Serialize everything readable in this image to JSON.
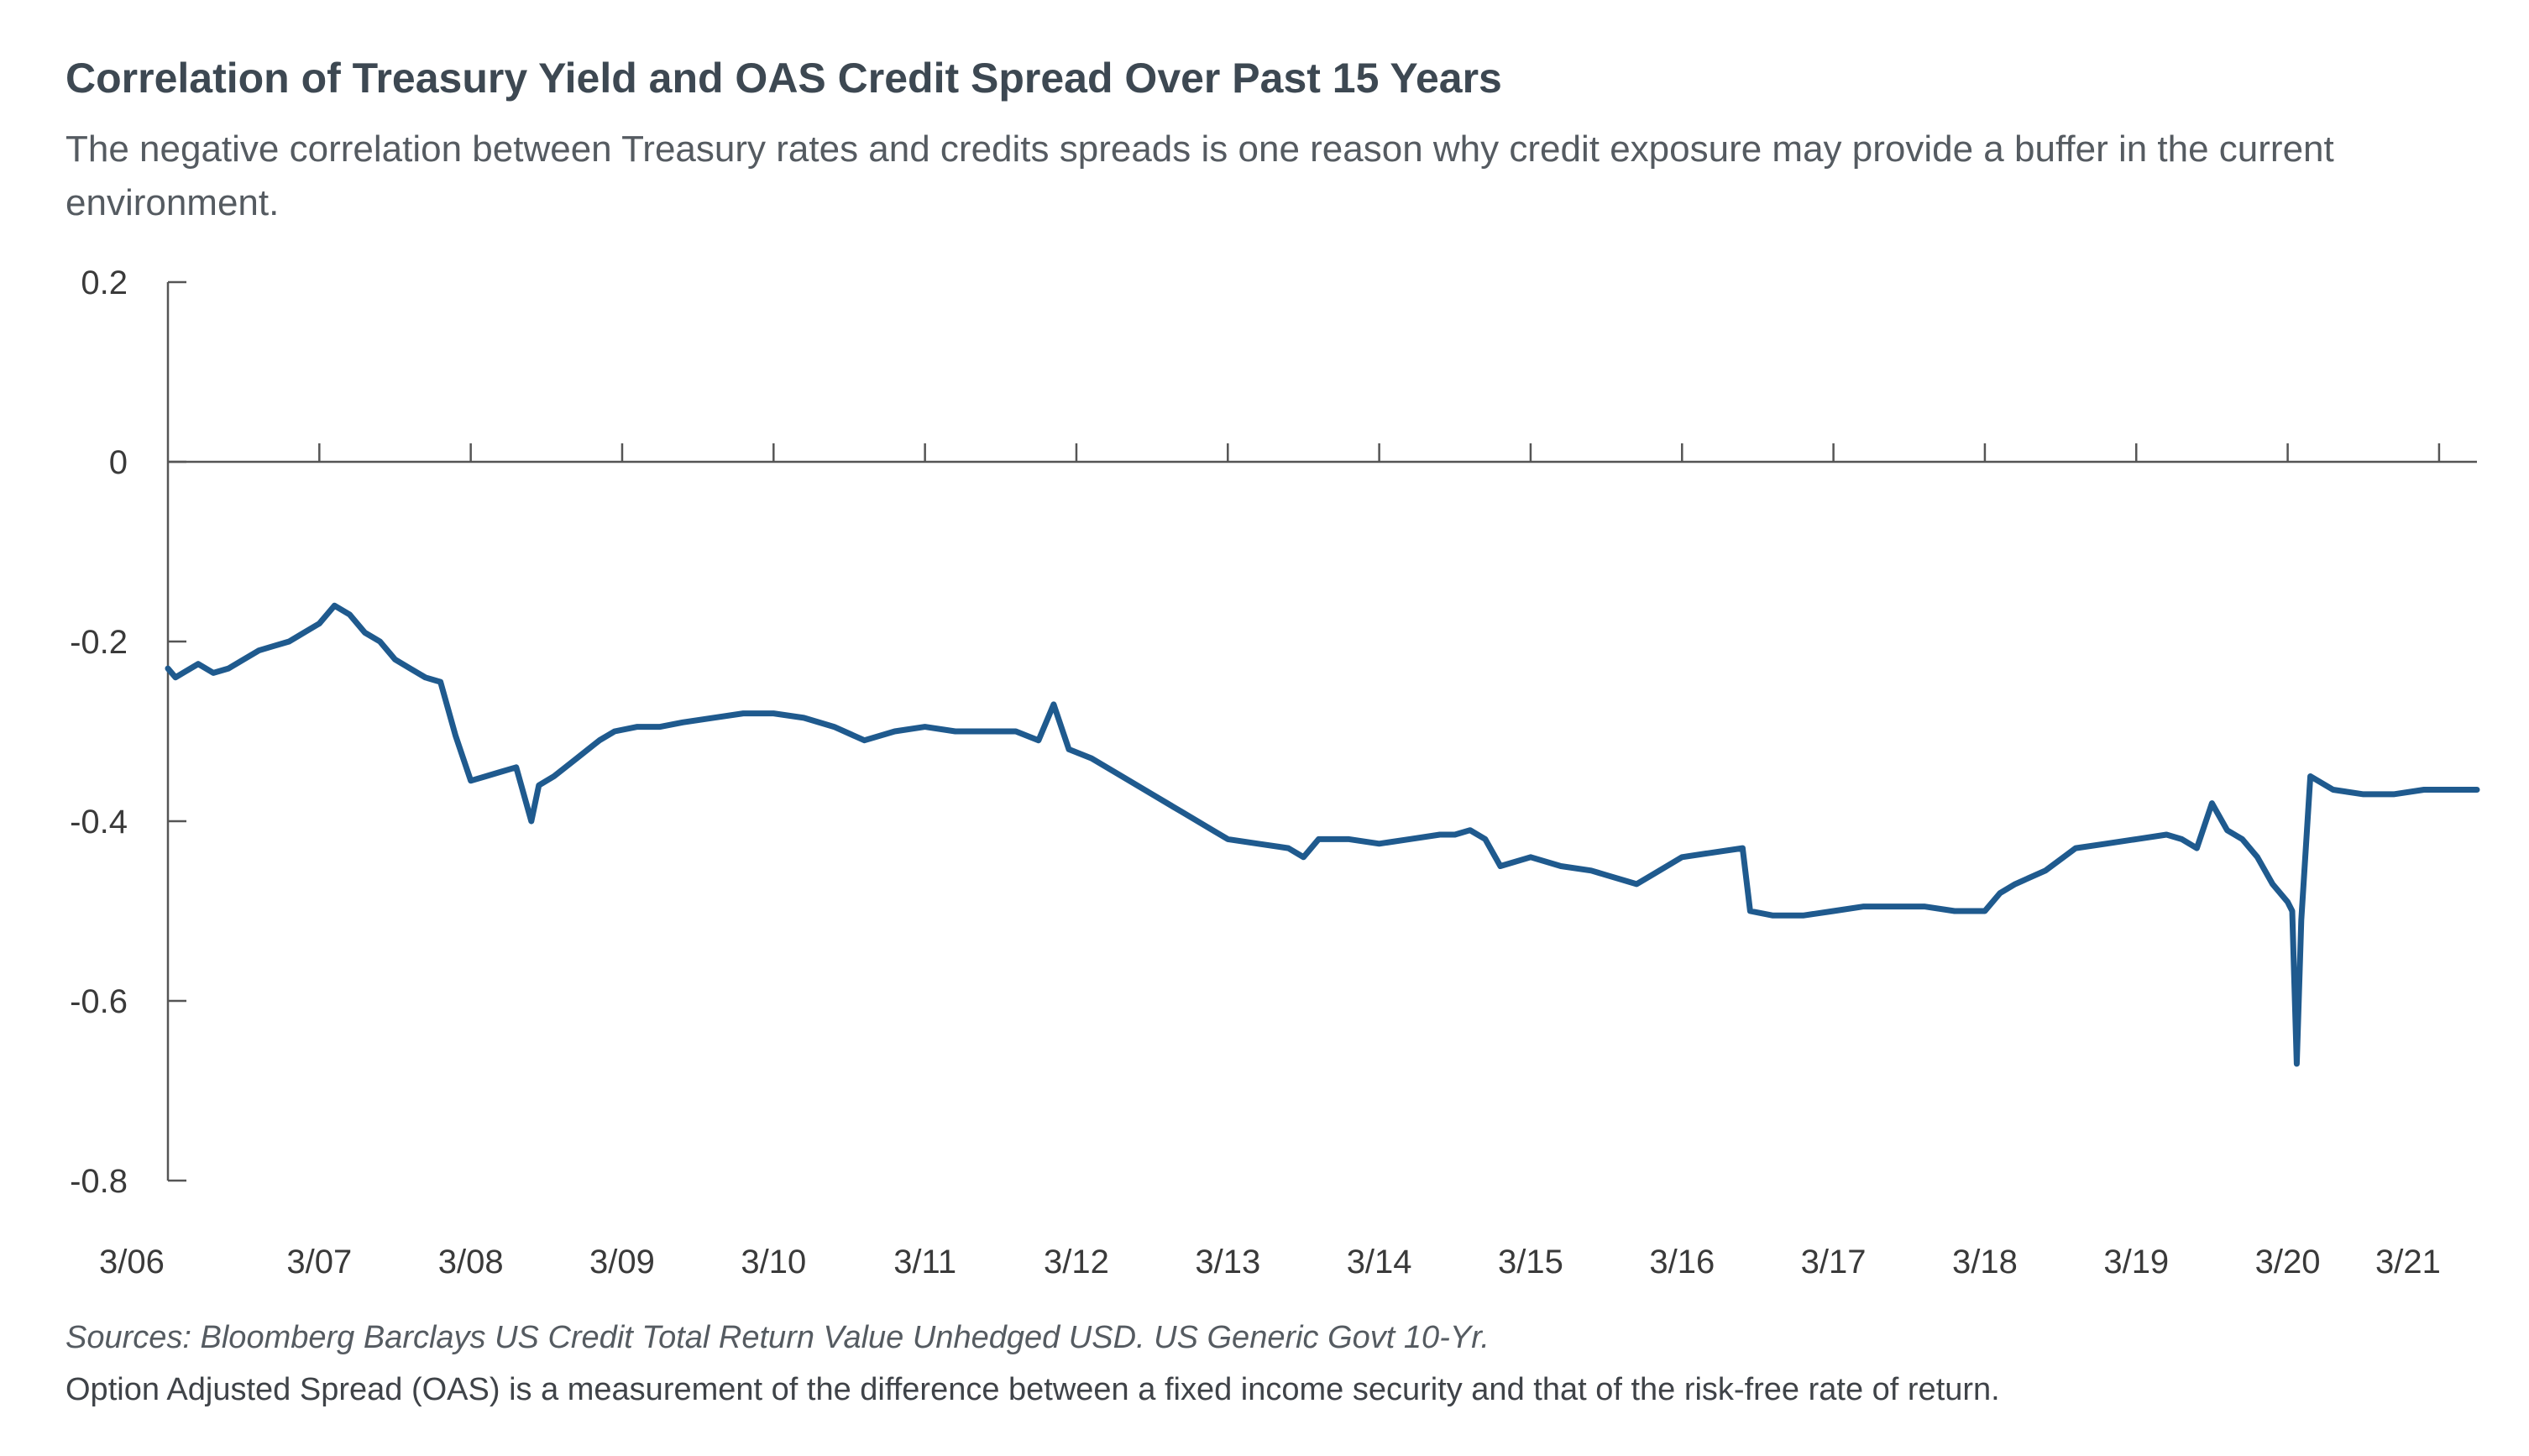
{
  "title": "Correlation of Treasury Yield and OAS Credit Spread Over Past 15 Years",
  "subtitle": "The negative correlation between Treasury rates and credits spreads is one reason why credit exposure may provide a buffer in the current environment.",
  "source": "Sources: Bloomberg Barclays US Credit Total Return Value Unhedged USD. US Generic Govt 10-Yr.",
  "note": "Option Adjusted Spread (OAS) is a measurement of the difference between a fixed income security and that of the risk-free rate of return.",
  "colors": {
    "line": "#1f5a8e",
    "axis": "#555555",
    "text": "#3a3a3a"
  },
  "chart_data": {
    "type": "line",
    "title": "",
    "xlabel": "",
    "ylabel": "",
    "ylim": [
      -0.8,
      0.2
    ],
    "xlim": [
      2006.0,
      2021.25
    ],
    "grid": false,
    "legend": "none",
    "y_ticks": [
      0.2,
      0,
      -0.2,
      -0.4,
      -0.6,
      -0.8
    ],
    "y_tick_labels": [
      "0.2",
      "0",
      "-0.2",
      "-0.4",
      "-0.6",
      "-0.8"
    ],
    "x_ticks": [
      2006,
      2007,
      2008,
      2009,
      2010,
      2011,
      2012,
      2013,
      2014,
      2015,
      2016,
      2017,
      2018,
      2019,
      2020,
      2021
    ],
    "x_tick_labels": [
      "3/06",
      "3/07",
      "3/08",
      "3/09",
      "3/10",
      "3/11",
      "3/12",
      "3/13",
      "3/14",
      "3/15",
      "3/16",
      "3/17",
      "3/18",
      "3/19",
      "3/20",
      "3/21"
    ],
    "series": [
      {
        "x": [
          2006.0,
          2006.05,
          2006.1,
          2006.2,
          2006.3,
          2006.4,
          2006.5,
          2006.6,
          2006.7,
          2006.8,
          2006.9,
          2007.0,
          2007.1,
          2007.2,
          2007.3,
          2007.4,
          2007.5,
          2007.6,
          2007.7,
          2007.8,
          2007.9,
          2008.0,
          2008.1,
          2008.2,
          2008.3,
          2008.4,
          2008.45,
          2008.55,
          2008.7,
          2008.85,
          2008.95,
          2009.1,
          2009.25,
          2009.4,
          2009.6,
          2009.8,
          2010.0,
          2010.2,
          2010.4,
          2010.6,
          2010.8,
          2011.0,
          2011.2,
          2011.4,
          2011.6,
          2011.75,
          2011.85,
          2011.95,
          2012.1,
          2012.3,
          2012.5,
          2012.7,
          2012.9,
          2013.0,
          2013.2,
          2013.4,
          2013.5,
          2013.6,
          2013.8,
          2014.0,
          2014.2,
          2014.4,
          2014.5,
          2014.6,
          2014.7,
          2014.8,
          2015.0,
          2015.2,
          2015.4,
          2015.5,
          2015.7,
          2015.8,
          2016.0,
          2016.2,
          2016.4,
          2016.45,
          2016.6,
          2016.8,
          2017.0,
          2017.2,
          2017.4,
          2017.6,
          2017.8,
          2018.0,
          2018.1,
          2018.2,
          2018.4,
          2018.6,
          2018.8,
          2019.0,
          2019.2,
          2019.3,
          2019.4,
          2019.5,
          2019.6,
          2019.7,
          2019.8,
          2019.9,
          2020.0,
          2020.03,
          2020.06,
          2020.09,
          2020.15,
          2020.3,
          2020.5,
          2020.7,
          2020.9,
          2021.1,
          2021.25
        ],
        "y": [
          -0.23,
          -0.24,
          -0.235,
          -0.225,
          -0.235,
          -0.23,
          -0.22,
          -0.21,
          -0.205,
          -0.2,
          -0.19,
          -0.18,
          -0.16,
          -0.17,
          -0.19,
          -0.2,
          -0.22,
          -0.23,
          -0.24,
          -0.245,
          -0.305,
          -0.355,
          -0.35,
          -0.345,
          -0.34,
          -0.4,
          -0.36,
          -0.35,
          -0.33,
          -0.31,
          -0.3,
          -0.295,
          -0.295,
          -0.29,
          -0.285,
          -0.28,
          -0.28,
          -0.285,
          -0.295,
          -0.31,
          -0.3,
          -0.295,
          -0.3,
          -0.3,
          -0.3,
          -0.31,
          -0.27,
          -0.32,
          -0.33,
          -0.35,
          -0.37,
          -0.39,
          -0.41,
          -0.42,
          -0.425,
          -0.43,
          -0.44,
          -0.42,
          -0.42,
          -0.425,
          -0.42,
          -0.415,
          -0.415,
          -0.41,
          -0.42,
          -0.45,
          -0.44,
          -0.45,
          -0.455,
          -0.46,
          -0.47,
          -0.46,
          -0.44,
          -0.435,
          -0.43,
          -0.5,
          -0.505,
          -0.505,
          -0.5,
          -0.495,
          -0.495,
          -0.495,
          -0.5,
          -0.5,
          -0.48,
          -0.47,
          -0.455,
          -0.43,
          -0.425,
          -0.42,
          -0.415,
          -0.42,
          -0.43,
          -0.38,
          -0.41,
          -0.42,
          -0.44,
          -0.47,
          -0.49,
          -0.5,
          -0.67,
          -0.51,
          -0.35,
          -0.365,
          -0.37,
          -0.37,
          -0.365,
          -0.365,
          -0.365
        ]
      }
    ]
  }
}
